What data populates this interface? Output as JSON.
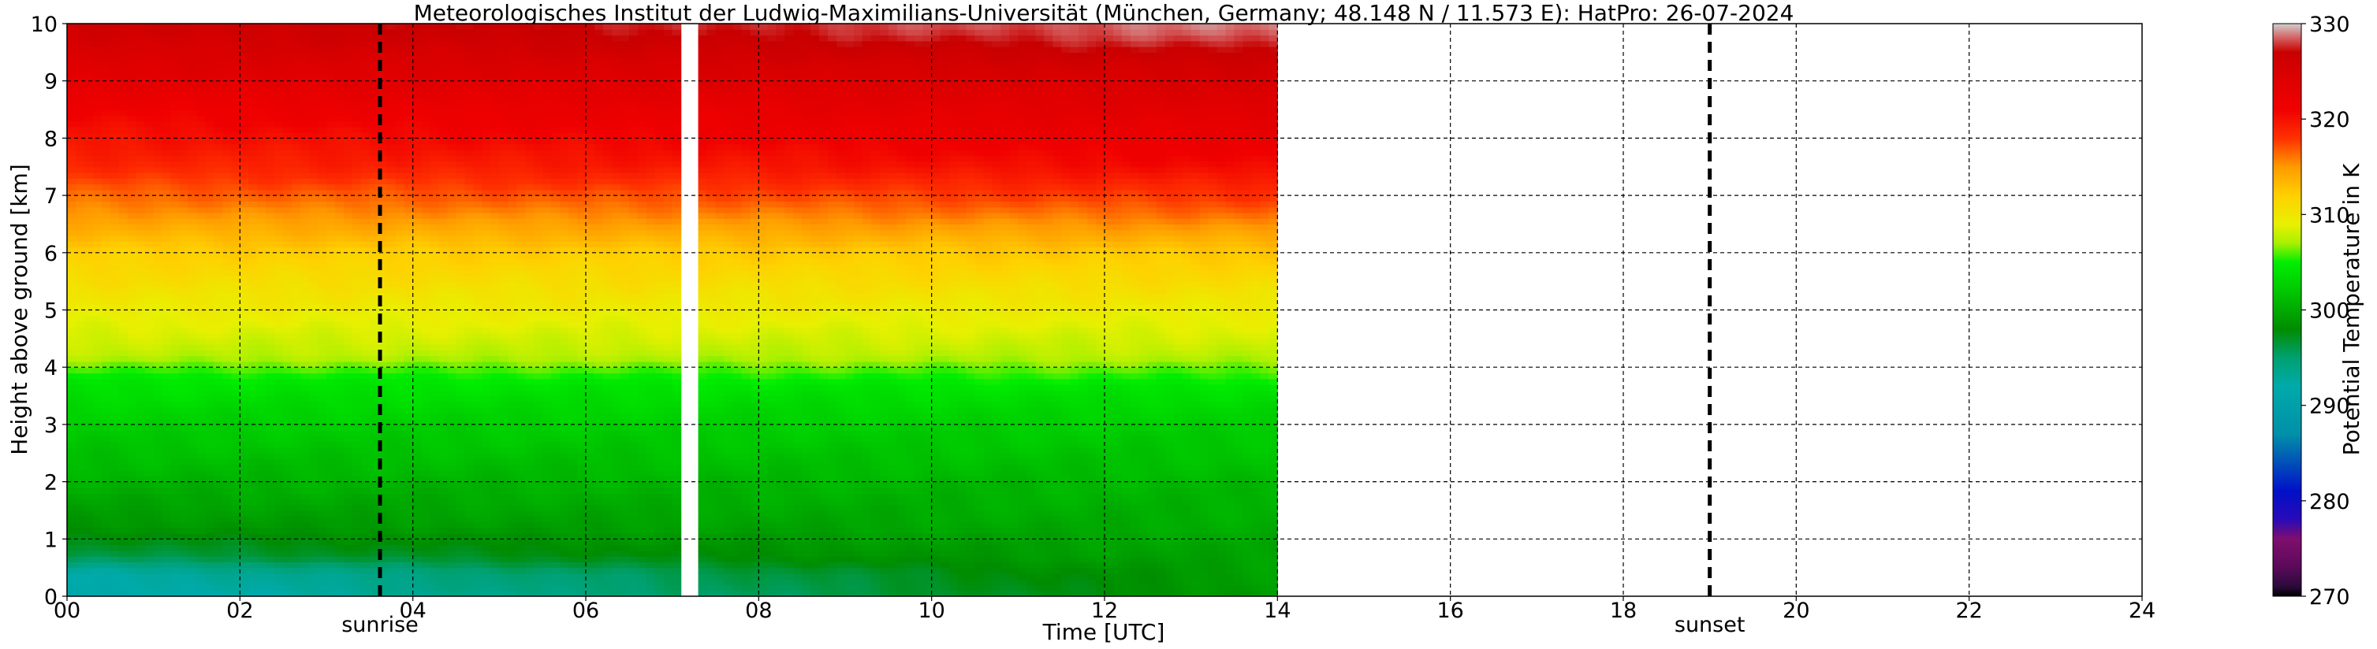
{
  "chart_data": {
    "type": "heatmap",
    "title": "Meteorologisches Institut der Ludwig-Maximilians-Universität (München, Germany; 48.148 N / 11.573 E):    HatPro: 26-07-2024",
    "xlabel": "Time [UTC]",
    "ylabel": "Height above ground [km]",
    "xlim": [
      0,
      24
    ],
    "ylim": [
      0,
      10
    ],
    "x_ticks": [
      "00",
      "02",
      "04",
      "06",
      "08",
      "10",
      "12",
      "14",
      "16",
      "18",
      "20",
      "22",
      "24"
    ],
    "y_ticks": [
      "0",
      "1",
      "2",
      "3",
      "4",
      "5",
      "6",
      "7",
      "8",
      "9",
      "10"
    ],
    "grid": true,
    "data_extent_hours": [
      0,
      14
    ],
    "gap_hours": [
      7.1,
      7.3
    ],
    "annotations": [
      {
        "label": "sunrise",
        "x": 3.62
      },
      {
        "label": "sunset",
        "x": 19.0
      }
    ],
    "colorbar": {
      "label": "Potential Temperature in K",
      "ticks": [
        "270",
        "280",
        "290",
        "300",
        "310",
        "320",
        "330"
      ],
      "range": [
        270,
        330
      ],
      "stops": [
        {
          "value": 270,
          "color": "#000000"
        },
        {
          "value": 271,
          "color": "#2a0a3a"
        },
        {
          "value": 273,
          "color": "#5a0a5a"
        },
        {
          "value": 276,
          "color": "#800e6e"
        },
        {
          "value": 278,
          "color": "#2a0ab8"
        },
        {
          "value": 281,
          "color": "#0010c8"
        },
        {
          "value": 287,
          "color": "#0090a8"
        },
        {
          "value": 292,
          "color": "#00aaaa"
        },
        {
          "value": 295,
          "color": "#00a070"
        },
        {
          "value": 298,
          "color": "#008c00"
        },
        {
          "value": 302,
          "color": "#00c800"
        },
        {
          "value": 305,
          "color": "#00ee00"
        },
        {
          "value": 307,
          "color": "#a8f000"
        },
        {
          "value": 309,
          "color": "#e8f000"
        },
        {
          "value": 312,
          "color": "#ffd000"
        },
        {
          "value": 315,
          "color": "#ff9a00"
        },
        {
          "value": 318,
          "color": "#ff3000"
        },
        {
          "value": 321,
          "color": "#f00000"
        },
        {
          "value": 325,
          "color": "#d80000"
        },
        {
          "value": 327,
          "color": "#c80000"
        },
        {
          "value": 328.5,
          "color": "#d46060"
        },
        {
          "value": 330,
          "color": "#d0d0d0"
        }
      ]
    },
    "profile_early": [
      {
        "h": 0.0,
        "t": 291.0
      },
      {
        "h": 0.4,
        "t": 292.0
      },
      {
        "h": 0.7,
        "t": 296.0
      },
      {
        "h": 1.2,
        "t": 298.5
      },
      {
        "h": 2.0,
        "t": 300.5
      },
      {
        "h": 3.0,
        "t": 302.5
      },
      {
        "h": 3.8,
        "t": 304.5
      },
      {
        "h": 4.2,
        "t": 307.5
      },
      {
        "h": 5.0,
        "t": 309.5
      },
      {
        "h": 6.0,
        "t": 312.0
      },
      {
        "h": 6.8,
        "t": 315.5
      },
      {
        "h": 7.5,
        "t": 318.5
      },
      {
        "h": 8.5,
        "t": 321.0
      },
      {
        "h": 9.3,
        "t": 324.0
      },
      {
        "h": 10.0,
        "t": 326.0
      }
    ],
    "profile_late": [
      {
        "h": 0.0,
        "t": 299.0
      },
      {
        "h": 0.5,
        "t": 299.5
      },
      {
        "h": 1.0,
        "t": 300.0
      },
      {
        "h": 2.0,
        "t": 301.0
      },
      {
        "h": 3.0,
        "t": 302.5
      },
      {
        "h": 3.6,
        "t": 304.0
      },
      {
        "h": 4.2,
        "t": 307.5
      },
      {
        "h": 5.0,
        "t": 309.5
      },
      {
        "h": 6.0,
        "t": 312.5
      },
      {
        "h": 6.8,
        "t": 317.0
      },
      {
        "h": 7.5,
        "t": 320.5
      },
      {
        "h": 8.5,
        "t": 323.5
      },
      {
        "h": 9.3,
        "t": 326.0
      },
      {
        "h": 9.8,
        "t": 328.5
      },
      {
        "h": 10.0,
        "t": 329.0
      }
    ]
  }
}
